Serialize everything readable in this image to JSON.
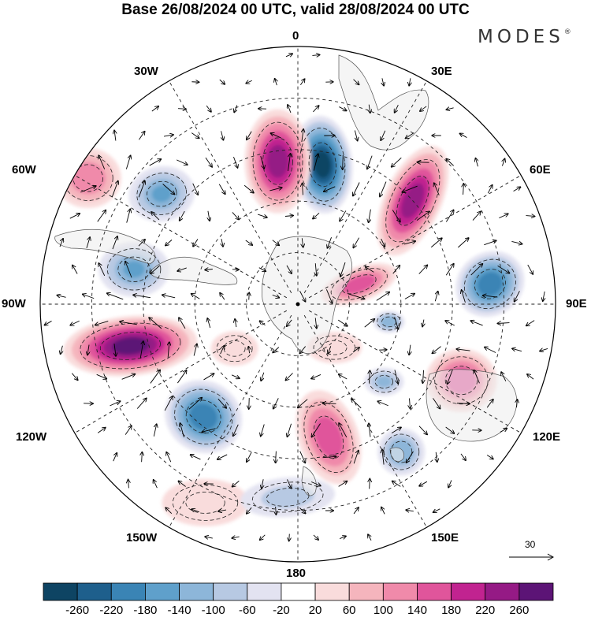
{
  "title": "Base 26/08/2024 00 UTC, valid 28/08/2024 00 UTC",
  "brand": {
    "name": "MODES",
    "mark": "®"
  },
  "longitude_labels": {
    "lon_0": "0",
    "lon_30e": "30E",
    "lon_60e": "60E",
    "lon_90e": "90E",
    "lon_120e": "120E",
    "lon_150e": "150E",
    "lon_180": "180",
    "lon_150w": "150W",
    "lon_120w": "120W",
    "lon_90w": "90W",
    "lon_60w": "60W",
    "lon_30w": "30W"
  },
  "reference_vector": {
    "label": "30"
  },
  "colorbar": {
    "colors": [
      "#0e4463",
      "#1e5f8c",
      "#3a84b5",
      "#5fa0cb",
      "#8db6d9",
      "#b7c9e3",
      "#e3e3f1",
      "#ffffff",
      "#f9dcdc",
      "#f5b5bd",
      "#f08aaa",
      "#e0559b",
      "#c12390",
      "#951a85",
      "#5c1476"
    ],
    "ticks": [
      "-260",
      "-220",
      "-180",
      "-140",
      "-100",
      "-60",
      "-20",
      "20",
      "60",
      "100",
      "140",
      "180",
      "220",
      "260"
    ]
  },
  "anomalies": [
    {
      "id": "neg-0-north",
      "lon_deg": 10,
      "colat": 0.55,
      "v": -280,
      "sx": 38,
      "sy": 62,
      "rot": -5
    },
    {
      "id": "pos-30w",
      "lon_deg": -8,
      "colat": 0.56,
      "v": 250,
      "sx": 42,
      "sy": 66,
      "rot": 0
    },
    {
      "id": "pos-45e",
      "lon_deg": 48,
      "colat": 0.6,
      "v": 240,
      "sx": 36,
      "sy": 75,
      "rot": 25
    },
    {
      "id": "pos-75e",
      "lon_deg": 72,
      "colat": 0.25,
      "v": 180,
      "sx": 50,
      "sy": 22,
      "rot": -20
    },
    {
      "id": "neg-90e",
      "lon_deg": 84,
      "colat": 0.75,
      "v": -200,
      "sx": 45,
      "sy": 40,
      "rot": -35
    },
    {
      "id": "pos-105w",
      "lon_deg": -104,
      "colat": 0.67,
      "v": 265,
      "sx": 85,
      "sy": 38,
      "rot": -5
    },
    {
      "id": "neg-70w",
      "lon_deg": -78,
      "colat": 0.65,
      "v": -140,
      "sx": 45,
      "sy": 35,
      "rot": 0
    },
    {
      "id": "neg-60w",
      "lon_deg": -51,
      "colat": 0.68,
      "v": -140,
      "sx": 42,
      "sy": 35,
      "rot": -10
    },
    {
      "id": "neg-130w",
      "lon_deg": -140,
      "colat": 0.57,
      "v": -200,
      "sx": 50,
      "sy": 45,
      "rot": 30
    },
    {
      "id": "pos-165e",
      "lon_deg": 167,
      "colat": 0.53,
      "v": 170,
      "sx": 38,
      "sy": 62,
      "rot": -20
    },
    {
      "id": "pos-60w-rim",
      "lon_deg": -59,
      "colat": 0.95,
      "v": 120,
      "sx": 42,
      "sy": 38,
      "rot": 0
    },
    {
      "id": "pos-115e",
      "lon_deg": 115,
      "colat": 0.7,
      "v": 150,
      "sx": 45,
      "sy": 40,
      "rot": 0
    },
    {
      "id": "neg-140e",
      "lon_deg": 145,
      "colat": 0.7,
      "v": -120,
      "sx": 30,
      "sy": 30,
      "rot": 0
    },
    {
      "id": "neg-100e",
      "lon_deg": 101,
      "colat": 0.36,
      "v": -120,
      "sx": 20,
      "sy": 14,
      "rot": 0
    },
    {
      "id": "neg-120e",
      "lon_deg": 132,
      "colat": 0.45,
      "v": -100,
      "sx": 25,
      "sy": 18,
      "rot": 0
    },
    {
      "id": "pos-140w",
      "lon_deg": -155,
      "colat": 0.85,
      "v": 60,
      "sx": 55,
      "sy": 30,
      "rot": 0
    },
    {
      "id": "neg-160w",
      "lon_deg": -177,
      "colat": 0.75,
      "v": -60,
      "sx": 60,
      "sy": 25,
      "rot": -5
    },
    {
      "id": "pos-110e-inner",
      "lon_deg": 140,
      "colat": 0.22,
      "v": 60,
      "sx": 35,
      "sy": 20,
      "rot": 0
    },
    {
      "id": "pos-130w-inner",
      "lon_deg": -125,
      "colat": 0.3,
      "v": 60,
      "sx": 30,
      "sy": 22,
      "rot": 0
    }
  ]
}
